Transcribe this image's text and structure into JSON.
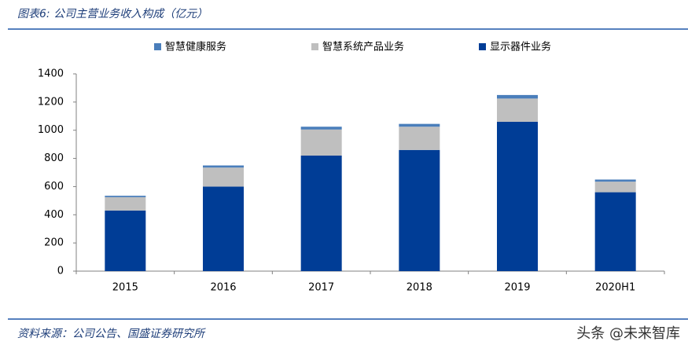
{
  "header": {
    "title": "图表6: 公司主营业务收入构成（亿元）"
  },
  "chart_data": {
    "type": "stacked_bar",
    "categories": [
      "2015",
      "2016",
      "2017",
      "2018",
      "2019",
      "2020H1"
    ],
    "series": [
      {
        "name": "智慧健康服务",
        "color": "#4a7ebb",
        "values": [
          10,
          15,
          20,
          20,
          25,
          15
        ]
      },
      {
        "name": "智慧系统产品业务",
        "color": "#bfbfbf",
        "values": [
          95,
          135,
          185,
          165,
          165,
          75
        ]
      },
      {
        "name": "显示器件业务",
        "color": "#003d96",
        "values": [
          430,
          600,
          820,
          860,
          1060,
          560
        ]
      }
    ],
    "ylim": [
      0,
      1400
    ],
    "yticks": [
      0,
      200,
      400,
      600,
      800,
      1000,
      1200,
      1400
    ],
    "legend": "top"
  },
  "footer": {
    "source": "资料来源：公司公告、国盛证券研究所",
    "watermark": "头条 @未来智库"
  }
}
